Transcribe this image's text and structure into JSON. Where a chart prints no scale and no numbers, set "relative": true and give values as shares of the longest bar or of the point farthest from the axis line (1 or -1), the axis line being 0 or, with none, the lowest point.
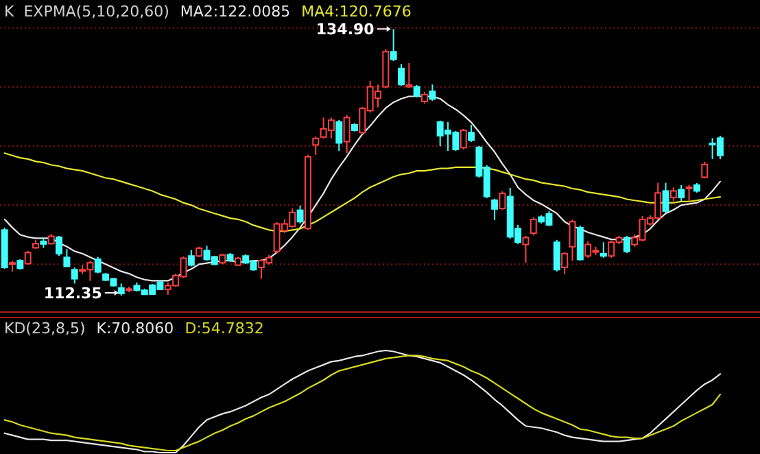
{
  "chart_data": [
    {
      "type": "candlestick",
      "title": "K  EXPMA(5,10,20,60)",
      "legend": "top left",
      "grid": "y",
      "categories": [
        null,
        null,
        null,
        null,
        null,
        null,
        null,
        null,
        null,
        null,
        null,
        null,
        null,
        null,
        null,
        null,
        null,
        null,
        null,
        null,
        null,
        null,
        null,
        null,
        null,
        null,
        null,
        null,
        null,
        null,
        null,
        null,
        null,
        null,
        null,
        null,
        null,
        null,
        null,
        null,
        null,
        null,
        null,
        null,
        null,
        null,
        null,
        null,
        null,
        null,
        null,
        null,
        null,
        null,
        null,
        null,
        null,
        null,
        null,
        null,
        null,
        null,
        null,
        null,
        null,
        null,
        null,
        null,
        null,
        null,
        null,
        null,
        null,
        null,
        null,
        null,
        null,
        null,
        null,
        null,
        null,
        null,
        null,
        null,
        null,
        null,
        null,
        null,
        null,
        null,
        null,
        null,
        null
      ],
      "ylim": [
        110.9,
        137.35
      ],
      "yticks": [
        {
          "value": 115,
          "label": null
        },
        {
          "value": 120,
          "label": null
        },
        {
          "value": 125,
          "label": null
        },
        {
          "value": 130,
          "label": null
        },
        {
          "value": 135,
          "label": null
        }
      ],
      "ohlc": [
        [
          117.9,
          118.1,
          114.62,
          114.73
        ],
        [
          115.08,
          115.31,
          114.39,
          115.12
        ],
        [
          115.31,
          115.43,
          114.56,
          114.65
        ],
        [
          115.05,
          116.13,
          114.97,
          115.98
        ],
        [
          116.39,
          117.06,
          116.28,
          116.74
        ],
        [
          116.94,
          117.25,
          116.39,
          116.71
        ],
        [
          116.74,
          117.55,
          116.67,
          117.37
        ],
        [
          117.29,
          117.4,
          115.7,
          115.9
        ],
        [
          115.58,
          116.28,
          114.75,
          114.82
        ],
        [
          114.54,
          114.73,
          113.37,
          113.77
        ],
        [
          114.47,
          114.93,
          114.16,
          114.54
        ],
        [
          114.54,
          115.31,
          113.58,
          115.12
        ],
        [
          115.43,
          115.63,
          114.24,
          114.35
        ],
        [
          114.16,
          114.27,
          113.58,
          113.66
        ],
        [
          113.77,
          113.86,
          113.11,
          113.19
        ],
        [
          112.99,
          113.37,
          112.35,
          112.53
        ],
        [
          112.84,
          113.11,
          112.65,
          112.91
        ],
        [
          113.19,
          113.46,
          112.7,
          112.8
        ],
        [
          112.8,
          112.94,
          112.42,
          112.45
        ],
        [
          113.23,
          113.34,
          112.42,
          112.47
        ],
        [
          113.49,
          113.63,
          112.82,
          112.88
        ],
        [
          112.88,
          113.46,
          112.42,
          113.19
        ],
        [
          113.19,
          114.21,
          113.11,
          114.04
        ],
        [
          113.95,
          115.66,
          113.86,
          115.51
        ],
        [
          115.7,
          116.21,
          114.82,
          114.93
        ],
        [
          115.7,
          116.48,
          115.61,
          116.36
        ],
        [
          116.16,
          116.56,
          115.31,
          115.4
        ],
        [
          115.63,
          115.72,
          114.91,
          115.0
        ],
        [
          115.12,
          115.9,
          115.02,
          115.78
        ],
        [
          115.81,
          115.95,
          115.2,
          115.31
        ],
        [
          114.93,
          115.61,
          114.85,
          115.51
        ],
        [
          115.7,
          115.84,
          115.02,
          115.12
        ],
        [
          115.23,
          115.37,
          114.45,
          114.54
        ],
        [
          114.73,
          115.43,
          113.77,
          115.31
        ],
        [
          115.12,
          115.78,
          114.97,
          115.55
        ],
        [
          116.09,
          118.56,
          115.95,
          118.41
        ],
        [
          117.83,
          118.79,
          117.63,
          118.41
        ],
        [
          118.21,
          119.72,
          118.1,
          119.38
        ],
        [
          119.57,
          119.96,
          118.45,
          118.6
        ],
        [
          118.02,
          124.25,
          117.92,
          124.09
        ],
        [
          125.09,
          125.81,
          124.25,
          125.64
        ],
        [
          125.76,
          127.41,
          125.64,
          126.45
        ],
        [
          126.33,
          127.41,
          125.64,
          127.18
        ],
        [
          127.03,
          127.21,
          124.59,
          125.26
        ],
        [
          125.37,
          127.61,
          124.4,
          127.41
        ],
        [
          126.8,
          126.92,
          126.22,
          126.33
        ],
        [
          126.14,
          128.31,
          125.99,
          128.19
        ],
        [
          127.99,
          130.48,
          127.84,
          130.01
        ],
        [
          129.04,
          130.2,
          128.27,
          129.62
        ],
        [
          130.01,
          133.18,
          129.87,
          132.98
        ],
        [
          132.98,
          134.9,
          132.19,
          132.33
        ],
        [
          131.56,
          131.94,
          130.1,
          130.2
        ],
        [
          130.01,
          132.02,
          129.93,
          130.16
        ],
        [
          130.01,
          130.16,
          129.12,
          129.24
        ],
        [
          128.77,
          129.58,
          128.6,
          129.35
        ],
        [
          129.62,
          130.2,
          128.83,
          128.97
        ],
        [
          127.03,
          127.15,
          124.98,
          125.87
        ],
        [
          126.33,
          127.03,
          124.59,
          126.02
        ],
        [
          126.14,
          126.28,
          124.59,
          124.71
        ],
        [
          124.86,
          126.45,
          124.71,
          126.33
        ],
        [
          126.14,
          126.8,
          125.35,
          125.49
        ],
        [
          124.89,
          125.0,
          122.33,
          122.47
        ],
        [
          123.2,
          123.37,
          120.59,
          120.73
        ],
        [
          120.42,
          120.54,
          118.74,
          119.67
        ],
        [
          119.72,
          121.17,
          119.61,
          121.0
        ],
        [
          120.73,
          121.46,
          117.17,
          117.32
        ],
        [
          118.02,
          118.33,
          116.71,
          116.86
        ],
        [
          116.67,
          117.4,
          115.12,
          117.25
        ],
        [
          117.63,
          118.97,
          117.44,
          118.79
        ],
        [
          118.99,
          119.14,
          118.45,
          118.6
        ],
        [
          119.26,
          119.49,
          118.21,
          118.33
        ],
        [
          116.86,
          117.06,
          114.39,
          114.54
        ],
        [
          114.73,
          116.01,
          114.16,
          115.9
        ],
        [
          116.48,
          118.79,
          115.31,
          118.6
        ],
        [
          118.1,
          118.27,
          115.31,
          115.4
        ],
        [
          115.7,
          116.94,
          115.55,
          116.67
        ],
        [
          116.07,
          116.48,
          115.78,
          116.15
        ],
        [
          115.9,
          116.86,
          115.55,
          115.7
        ],
        [
          115.7,
          117.0,
          115.55,
          116.86
        ],
        [
          116.86,
          117.4,
          116.71,
          117.25
        ],
        [
          117.25,
          117.4,
          115.95,
          116.09
        ],
        [
          116.67,
          117.52,
          116.48,
          117.25
        ],
        [
          117.06,
          119.08,
          116.94,
          118.79
        ],
        [
          118.41,
          119.14,
          118.27,
          118.91
        ],
        [
          118.91,
          121.89,
          118.79,
          121.03
        ],
        [
          121.2,
          121.89,
          119.37,
          119.49
        ],
        [
          120.65,
          121.5,
          120.33,
          121.2
        ],
        [
          121.31,
          121.7,
          120.33,
          120.65
        ],
        [
          121.42,
          121.7,
          120.33,
          121.52
        ],
        [
          121.7,
          121.87,
          121.06,
          121.2
        ],
        [
          122.36,
          123.67,
          122.27,
          123.44
        ],
        [
          125.23,
          125.67,
          123.9,
          125.12
        ],
        [
          125.67,
          125.87,
          123.9,
          124.21
        ]
      ],
      "colors": [
        "#40ffff",
        "#ff4040",
        "#40ffff",
        "#ff4040",
        "#ff4040",
        "#40ffff",
        "#ff4040",
        "#40ffff",
        "#40ffff",
        "#40ffff",
        "#ff4040",
        "#ff4040",
        "#40ffff",
        "#40ffff",
        "#40ffff",
        "#40ffff",
        "#ff4040",
        "#40ffff",
        "#40ffff",
        "#40ffff",
        "#40ffff",
        "#ff4040",
        "#ff4040",
        "#ff4040",
        "#40ffff",
        "#ff4040",
        "#40ffff",
        "#40ffff",
        "#ff4040",
        "#40ffff",
        "#ff4040",
        "#40ffff",
        "#40ffff",
        "#ff4040",
        "#ff4040",
        "#ff4040",
        "#ff4040",
        "#ff4040",
        "#40ffff",
        "#ff4040",
        "#ff4040",
        "#ff4040",
        "#ff4040",
        "#40ffff",
        "#ff4040",
        "#40ffff",
        "#ff4040",
        "#ff4040",
        "#ff4040",
        "#ff4040",
        "#40ffff",
        "#40ffff",
        "#ff4040",
        "#40ffff",
        "#ff4040",
        "#40ffff",
        "#40ffff",
        "#40ffff",
        "#40ffff",
        "#ff4040",
        "#40ffff",
        "#40ffff",
        "#40ffff",
        "#40ffff",
        "#ff4040",
        "#40ffff",
        "#40ffff",
        "#ff4040",
        "#ff4040",
        "#40ffff",
        "#40ffff",
        "#40ffff",
        "#ff4040",
        "#ff4040",
        "#40ffff",
        "#ff4040",
        "#ff4040",
        "#40ffff",
        "#ff4040",
        "#ff4040",
        "#40ffff",
        "#ff4040",
        "#ff4040",
        "#ff4040",
        "#ff4040",
        "#40ffff",
        "#ff4040",
        "#40ffff",
        "#ff4040",
        "#40ffff",
        "#ff4040",
        "#40ffff",
        "#40ffff"
      ],
      "series": [
        {
          "name": "MA2:122.0085",
          "type": "line",
          "color": "#e6e6e6",
          "values": [
            118.8,
            118.1,
            117.5,
            117.3,
            117.2,
            117.2,
            117.2,
            116.8,
            116.5,
            116.1,
            115.9,
            115.6,
            115.3,
            115.0,
            114.7,
            114.4,
            114.2,
            113.9,
            113.7,
            113.6,
            113.6,
            113.6,
            113.9,
            114.3,
            114.6,
            115.0,
            115.1,
            115.2,
            115.3,
            115.3,
            115.2,
            115.2,
            115.3,
            115.3,
            115.5,
            116.0,
            116.6,
            117.3,
            118.1,
            119.0,
            120.0,
            121.0,
            122.2,
            123.2,
            124.1,
            125.1,
            126.0,
            126.7,
            127.5,
            128.2,
            128.7,
            129.0,
            129.2,
            129.2,
            129.2,
            129.2,
            129.0,
            128.5,
            128.1,
            127.6,
            127.0,
            126.2,
            125.3,
            124.5,
            123.5,
            122.6,
            121.5,
            120.9,
            120.4,
            120.1,
            119.7,
            119.3,
            118.6,
            118.2,
            118.0,
            117.7,
            117.5,
            117.3,
            117.1,
            117.1,
            117.1,
            117.3,
            117.5,
            118.0,
            118.7,
            119.3,
            119.6,
            120.0,
            120.1,
            120.2,
            120.5,
            121.2,
            122.0
          ]
        },
        {
          "name": "MA4:120.7676",
          "type": "line",
          "color": "#e6e62e",
          "values": [
            124.4,
            124.2,
            124.0,
            123.9,
            123.7,
            123.6,
            123.4,
            123.3,
            123.1,
            123.0,
            122.9,
            122.7,
            122.5,
            122.3,
            122.2,
            122.0,
            121.8,
            121.6,
            121.4,
            121.2,
            120.9,
            120.7,
            120.5,
            120.2,
            120.0,
            119.7,
            119.5,
            119.3,
            119.1,
            118.9,
            118.8,
            118.6,
            118.3,
            118.1,
            117.9,
            117.8,
            117.8,
            117.9,
            118.0,
            118.3,
            118.6,
            119.0,
            119.4,
            119.8,
            120.2,
            120.6,
            121.1,
            121.5,
            121.8,
            122.1,
            122.4,
            122.6,
            122.7,
            122.9,
            122.9,
            123.0,
            123.1,
            123.1,
            123.2,
            123.2,
            123.2,
            123.2,
            123.1,
            123.0,
            122.8,
            122.6,
            122.4,
            122.2,
            122.1,
            121.9,
            121.8,
            121.7,
            121.6,
            121.4,
            121.3,
            121.1,
            121.0,
            120.9,
            120.8,
            120.7,
            120.5,
            120.4,
            120.3,
            120.2,
            120.2,
            120.2,
            120.2,
            120.3,
            120.3,
            120.4,
            120.5,
            120.6,
            120.7
          ]
        }
      ],
      "annotations": [
        "134.90",
        "112.35"
      ]
    },
    {
      "type": "line",
      "title": "KD(23,8,5)",
      "legend": "top left",
      "relative": true,
      "categories": [
        null,
        null,
        null,
        null,
        null,
        null,
        null,
        null,
        null,
        null,
        null,
        null,
        null,
        null,
        null,
        null,
        null,
        null,
        null,
        null,
        null,
        null,
        null,
        null,
        null,
        null,
        null,
        null,
        null,
        null,
        null,
        null,
        null,
        null,
        null,
        null,
        null,
        null,
        null,
        null,
        null,
        null,
        null,
        null,
        null,
        null,
        null,
        null,
        null,
        null,
        null,
        null,
        null,
        null,
        null,
        null,
        null,
        null,
        null,
        null,
        null,
        null,
        null,
        null,
        null,
        null,
        null,
        null,
        null,
        null,
        null,
        null,
        null,
        null,
        null,
        null,
        null,
        null,
        null,
        null,
        null,
        null,
        null,
        null,
        null,
        null,
        null,
        null,
        null,
        null,
        null,
        null,
        null
      ],
      "series": [
        {
          "name": "K:70.8060",
          "color": "#e6e6e6",
          "values": [
            0.19,
            0.17,
            0.15,
            0.13,
            0.13,
            0.13,
            0.12,
            0.12,
            0.12,
            0.11,
            0.1,
            0.09,
            0.08,
            0.07,
            0.06,
            0.05,
            0.04,
            0.03,
            0.01,
            0.01,
            0.0,
            0,
            0.0,
            0.07,
            0.16,
            0.25,
            0.32,
            0.35,
            0.38,
            0.4,
            0.43,
            0.46,
            0.5,
            0.54,
            0.57,
            0.62,
            0.67,
            0.72,
            0.76,
            0.8,
            0.83,
            0.86,
            0.89,
            0.9,
            0.92,
            0.94,
            0.95,
            0.97,
            0.99,
            1,
            0.99,
            0.97,
            0.95,
            0.94,
            0.92,
            0.9,
            0.88,
            0.84,
            0.8,
            0.76,
            0.71,
            0.65,
            0.59,
            0.52,
            0.46,
            0.39,
            0.32,
            0.26,
            0.25,
            0.24,
            0.22,
            0.2,
            0.17,
            0.15,
            0.14,
            0.13,
            0.12,
            0.11,
            0.11,
            0.11,
            0.12,
            0.13,
            0.14,
            0.19,
            0.26,
            0.33,
            0.4,
            0.47,
            0.54,
            0.61,
            0.67,
            0.71,
            0.77
          ]
        },
        {
          "name": "D:54.7832",
          "color": "#d8d820",
          "values": [
            0.32,
            0.3,
            0.27,
            0.25,
            0.23,
            0.21,
            0.19,
            0.18,
            0.17,
            0.15,
            0.14,
            0.13,
            0.12,
            0.11,
            0.1,
            0.09,
            0.07,
            0.06,
            0.05,
            0.04,
            0.03,
            0.02,
            0.02,
            0.05,
            0.08,
            0.11,
            0.15,
            0.19,
            0.22,
            0.26,
            0.29,
            0.33,
            0.36,
            0.4,
            0.44,
            0.47,
            0.5,
            0.54,
            0.58,
            0.63,
            0.67,
            0.71,
            0.76,
            0.8,
            0.82,
            0.84,
            0.86,
            0.88,
            0.9,
            0.92,
            0.93,
            0.94,
            0.95,
            0.95,
            0.94,
            0.92,
            0.91,
            0.9,
            0.87,
            0.84,
            0.8,
            0.77,
            0.73,
            0.68,
            0.63,
            0.58,
            0.53,
            0.48,
            0.43,
            0.39,
            0.36,
            0.33,
            0.3,
            0.27,
            0.23,
            0.22,
            0.2,
            0.18,
            0.16,
            0.15,
            0.15,
            0.14,
            0.14,
            0.17,
            0.2,
            0.23,
            0.26,
            0.31,
            0.35,
            0.39,
            0.43,
            0.47,
            0.57
          ]
        }
      ]
    }
  ]
}
